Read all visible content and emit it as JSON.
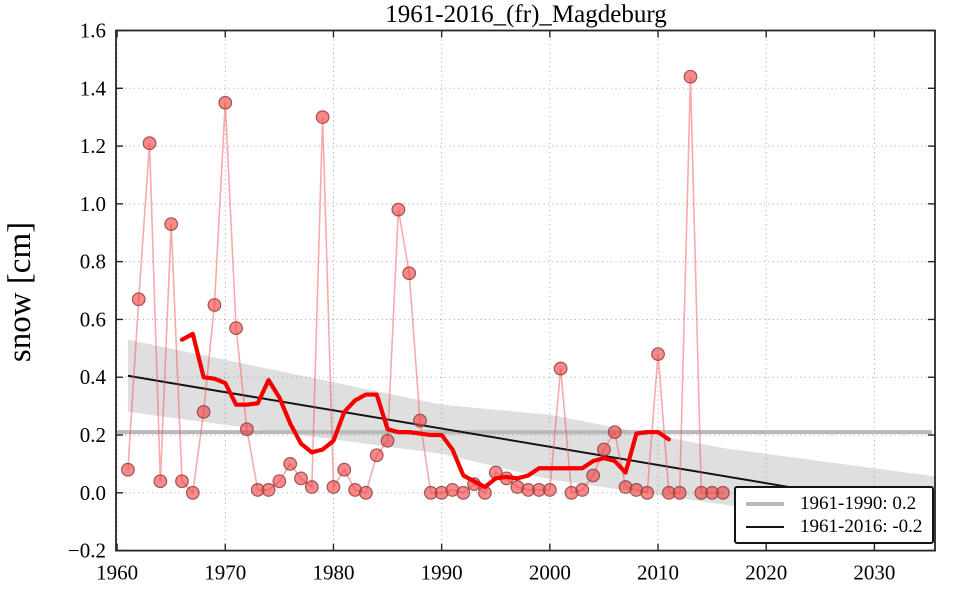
{
  "title": "1961-2016_(fr)_Magdeburg",
  "ylabel": "snow [cm]",
  "legend": {
    "items": [
      {
        "label": "1961-1990: 0.2",
        "color": "#b9b9b9",
        "line_width": 4
      },
      {
        "label": "1961-2016: -0.2",
        "color": "#141414",
        "line_width": 2
      }
    ]
  },
  "colors": {
    "scatter_fill": "#f03c3c",
    "scatter_edge": "#8f4040",
    "thin_line": "#f25555",
    "running_mean": "#f50000",
    "trend": "#141414",
    "reference": "#b9b9b9",
    "band": "rgba(130,130,130,0.26)",
    "grid": "#a8a8a8",
    "spine": "#262626"
  },
  "chart_data": {
    "type": "line",
    "title": "1961-2016_(fr)_Magdeburg",
    "xlabel": "",
    "ylabel": "snow [cm]",
    "xlim": [
      1959.9,
      2035.6
    ],
    "ylim": [
      -0.2,
      1.6
    ],
    "grid": true,
    "legend_position": "lower right",
    "xticks": [
      1960,
      1970,
      1980,
      1990,
      2000,
      2010,
      2020,
      2030
    ],
    "xtick_labels": [
      "1960",
      "1970",
      "1980",
      "1990",
      "2000",
      "2010",
      "2020",
      "2030"
    ],
    "yticks": [
      -0.2,
      0.0,
      0.2,
      0.4,
      0.6,
      0.8,
      1.0,
      1.2,
      1.4,
      1.6
    ],
    "ytick_labels": [
      "−0.2",
      "0.0",
      "0.2",
      "0.4",
      "0.6",
      "0.8",
      "1.0",
      "1.2",
      "1.4",
      "1.6"
    ],
    "scatter_series": {
      "name": "annual snow values",
      "years": [
        1961,
        1962,
        1963,
        1964,
        1965,
        1966,
        1967,
        1968,
        1969,
        1970,
        1971,
        1972,
        1973,
        1974,
        1975,
        1976,
        1977,
        1978,
        1979,
        1980,
        1981,
        1982,
        1983,
        1984,
        1985,
        1986,
        1987,
        1988,
        1989,
        1990,
        1991,
        1992,
        1993,
        1994,
        1995,
        1996,
        1997,
        1998,
        1999,
        2000,
        2001,
        2002,
        2003,
        2004,
        2005,
        2006,
        2007,
        2008,
        2009,
        2010,
        2011,
        2012,
        2013,
        2014,
        2015,
        2016
      ],
      "values": [
        0.08,
        0.67,
        1.21,
        0.04,
        0.93,
        0.04,
        0.0,
        0.28,
        0.65,
        1.35,
        0.57,
        0.22,
        0.01,
        0.01,
        0.04,
        0.1,
        0.05,
        0.02,
        1.3,
        0.02,
        0.08,
        0.01,
        0.0,
        0.13,
        0.18,
        0.98,
        0.76,
        0.25,
        0.0,
        0.0,
        0.01,
        0.0,
        0.03,
        0.0,
        0.07,
        0.05,
        0.02,
        0.01,
        0.01,
        0.01,
        0.43,
        0.0,
        0.01,
        0.06,
        0.15,
        0.21,
        0.02,
        0.01,
        0.0,
        0.48,
        0.0,
        0.0,
        1.44,
        0.0,
        0.0,
        0.0
      ]
    },
    "running_mean": {
      "name": "smoothed running mean",
      "years": [
        1966,
        1967,
        1968,
        1969,
        1970,
        1971,
        1972,
        1973,
        1974,
        1975,
        1976,
        1977,
        1978,
        1979,
        1980,
        1981,
        1982,
        1983,
        1984,
        1985,
        1986,
        1987,
        1988,
        1989,
        1990,
        1991,
        1992,
        1993,
        1994,
        1995,
        1996,
        1997,
        1998,
        1999,
        2000,
        2001,
        2002,
        2003,
        2004,
        2005,
        2006,
        2007,
        2008,
        2009,
        2010,
        2011
      ],
      "values": [
        0.53,
        0.55,
        0.4,
        0.395,
        0.38,
        0.305,
        0.305,
        0.31,
        0.39,
        0.33,
        0.24,
        0.17,
        0.14,
        0.15,
        0.18,
        0.28,
        0.32,
        0.34,
        0.34,
        0.22,
        0.21,
        0.21,
        0.205,
        0.2,
        0.2,
        0.15,
        0.06,
        0.04,
        0.02,
        0.05,
        0.055,
        0.05,
        0.06,
        0.085,
        0.085,
        0.085,
        0.085,
        0.085,
        0.11,
        0.12,
        0.11,
        0.07,
        0.205,
        0.21,
        0.21,
        0.185
      ]
    },
    "reference_line": {
      "name": "1961-1990 mean",
      "value": 0.21,
      "x": [
        1960,
        2035.3
      ],
      "legend_value": "0.2"
    },
    "trend_line": {
      "name": "1961-2016 linear trend",
      "x": [
        1961,
        2035.6
      ],
      "y": [
        0.405,
        -0.065
      ],
      "legend_value": "-0.2"
    },
    "confidence_band": {
      "name": "trend confidence band",
      "x": [
        1961,
        1990,
        2000,
        2016,
        2035.6
      ],
      "top": [
        0.53,
        0.305,
        0.27,
        0.155,
        0.057
      ],
      "bottom": [
        0.28,
        0.135,
        0.046,
        -0.04,
        -0.175
      ]
    }
  }
}
